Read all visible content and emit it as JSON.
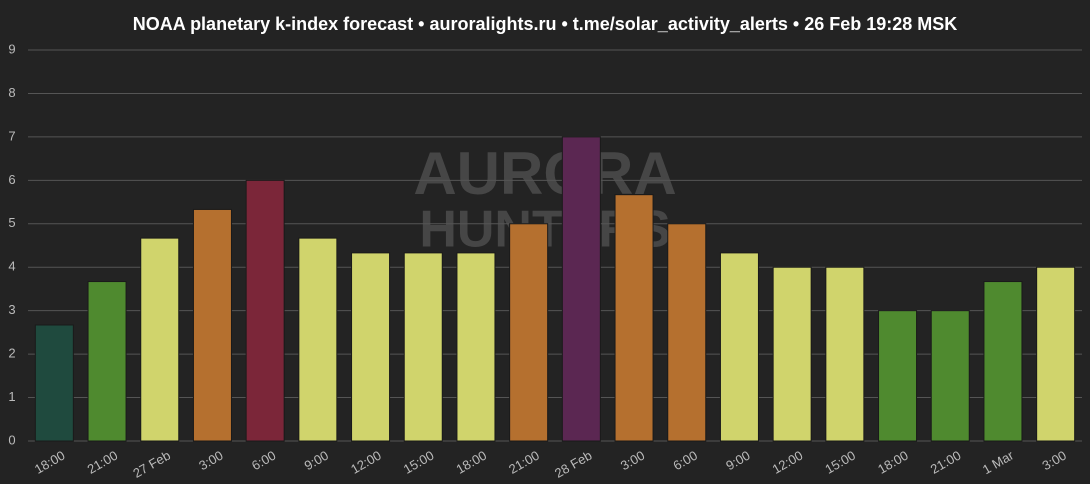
{
  "chart_data": {
    "type": "bar",
    "title": "NOAA planetary k-index forecast • auroralights.ru • t.me/solar_activity_alerts • 26 Feb 19:28 MSK",
    "watermark": [
      "AURORA",
      "HUNTERS"
    ],
    "categories": [
      "18:00",
      "21:00",
      "27 Feb",
      "3:00",
      "6:00",
      "9:00",
      "12:00",
      "15:00",
      "18:00",
      "21:00",
      "28 Feb",
      "3:00",
      "6:00",
      "9:00",
      "12:00",
      "15:00",
      "18:00",
      "21:00",
      "1 Mar",
      "3:00"
    ],
    "values": [
      2.67,
      3.67,
      4.67,
      5.33,
      6,
      4.67,
      4.33,
      4.33,
      4.33,
      5,
      7,
      5.67,
      5,
      4.33,
      4,
      4,
      3,
      3,
      3.67,
      4
    ],
    "colors": [
      "#1f4a3e",
      "#4f8a2f",
      "#d0d46c",
      "#b5702f",
      "#7b2639",
      "#d0d46c",
      "#d0d46c",
      "#d0d46c",
      "#d0d46c",
      "#b5702f",
      "#5b2752",
      "#b5702f",
      "#b5702f",
      "#d0d46c",
      "#d0d46c",
      "#d0d46c",
      "#4f8a2f",
      "#4f8a2f",
      "#4f8a2f",
      "#d0d46c"
    ],
    "ylim": [
      0,
      9
    ],
    "yticks": [
      0,
      1,
      2,
      3,
      4,
      5,
      6,
      7,
      8,
      9
    ],
    "grid": true
  }
}
